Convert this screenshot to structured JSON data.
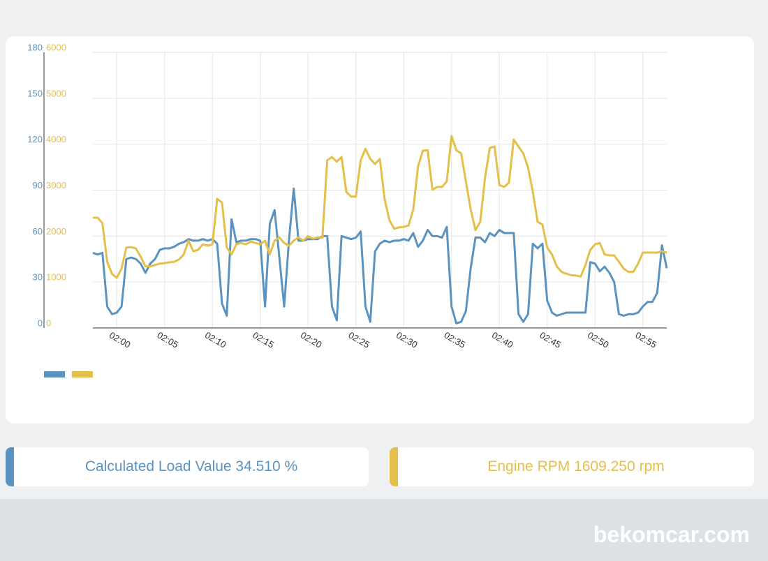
{
  "chart_data": {
    "type": "line",
    "x": [
      -2.5,
      -2,
      -1.5,
      -1,
      -0.5,
      0,
      0.5,
      1,
      1.5,
      2,
      2.5,
      3,
      3.5,
      4,
      4.5,
      5,
      5.5,
      6,
      6.5,
      7,
      7.5,
      8,
      8.5,
      9,
      9.5,
      10,
      10.5,
      11,
      11.5,
      12,
      12.5,
      13,
      13.5,
      14,
      14.5,
      15,
      15.5,
      16,
      16.5,
      17,
      17.5,
      18,
      18.5,
      19,
      19.5,
      20,
      20.5,
      21,
      21.5,
      22,
      22.5,
      23,
      23.5,
      24,
      24.5,
      25,
      25.5,
      26,
      26.5,
      27,
      27.5,
      28,
      28.5,
      29,
      29.5,
      30,
      30.5,
      31,
      31.5,
      32,
      32.5,
      33,
      33.5,
      34,
      34.5,
      35,
      35.5,
      36,
      36.5,
      37,
      37.5,
      38,
      38.5,
      39,
      39.5,
      40,
      40.5,
      41,
      41.5,
      42,
      42.5,
      43,
      43.5,
      44,
      44.5,
      45,
      45.5,
      46,
      46.5,
      47,
      47.5,
      48,
      48.5,
      49,
      49.5,
      50,
      50.5,
      51,
      51.5,
      52,
      52.5,
      53,
      53.5,
      54,
      54.5,
      55,
      55.5,
      56,
      56.5,
      57,
      57.5
    ],
    "xlim": [
      -2.5,
      57.5
    ],
    "xticks": [
      {
        "value": 0,
        "label": "02:00"
      },
      {
        "value": 5,
        "label": "02:05"
      },
      {
        "value": 10,
        "label": "02:10"
      },
      {
        "value": 15,
        "label": "02:15"
      },
      {
        "value": 20,
        "label": "02:20"
      },
      {
        "value": 25,
        "label": "02:25"
      },
      {
        "value": 30,
        "label": "02:30"
      },
      {
        "value": 35,
        "label": "02:35"
      },
      {
        "value": 40,
        "label": "02:40"
      },
      {
        "value": 45,
        "label": "02:45"
      },
      {
        "value": 50,
        "label": "02:50"
      },
      {
        "value": 55,
        "label": "02:55"
      }
    ],
    "ylim": [
      0,
      180
    ],
    "yticks": [
      0,
      30,
      60,
      90,
      120,
      150,
      180
    ],
    "y2lim": [
      0,
      6000
    ],
    "y2ticks": [
      0,
      1000,
      2000,
      3000,
      4000,
      5000,
      6000
    ],
    "grid": true,
    "series": [
      {
        "color": "#5b93c0",
        "values": [
          49,
          48,
          49,
          14,
          9,
          10,
          14,
          45,
          46,
          45,
          42,
          36,
          42,
          45,
          51,
          52,
          52,
          53,
          55,
          56,
          58,
          57,
          57,
          58,
          57,
          58,
          55,
          16,
          8,
          71,
          56,
          57,
          57,
          58,
          58,
          57,
          14,
          68,
          77,
          46,
          14,
          57,
          91,
          57,
          57,
          58,
          58,
          58,
          60,
          60,
          14,
          5,
          60,
          59,
          58,
          59,
          63,
          14,
          4,
          50,
          55,
          57,
          56,
          57,
          57,
          58,
          57,
          62,
          53,
          57,
          64,
          60,
          60,
          59,
          66,
          14,
          3,
          4,
          11,
          39,
          59,
          59,
          56,
          62,
          60,
          64,
          62,
          62,
          62,
          9,
          4,
          9,
          55,
          52,
          55,
          18,
          10,
          8,
          9,
          10,
          10,
          10,
          10,
          10,
          43,
          42,
          37,
          40,
          36,
          30,
          9,
          8,
          9,
          9,
          10,
          14,
          17,
          17,
          23,
          54,
          39
        ]
      },
      {
        "color": "#e4bf4a",
        "axis": "y2",
        "values": [
          2400,
          2400,
          2280,
          1440,
          1180,
          1090,
          1290,
          1750,
          1760,
          1730,
          1550,
          1340,
          1340,
          1370,
          1400,
          1410,
          1430,
          1440,
          1490,
          1600,
          1900,
          1670,
          1700,
          1820,
          1790,
          1820,
          2810,
          2730,
          1750,
          1600,
          1820,
          1850,
          1820,
          1880,
          1850,
          1820,
          1900,
          1600,
          1900,
          1970,
          1850,
          1790,
          1900,
          1970,
          1900,
          2000,
          1940,
          1970,
          1970,
          3650,
          3720,
          3620,
          3720,
          2960,
          2860,
          2860,
          3650,
          3900,
          3680,
          3570,
          3680,
          2810,
          2350,
          2160,
          2190,
          2200,
          2230,
          2580,
          3520,
          3860,
          3870,
          3010,
          3070,
          3070,
          3190,
          4180,
          3870,
          3800,
          3190,
          2580,
          2130,
          2310,
          3270,
          3920,
          3950,
          3110,
          3070,
          3160,
          4100,
          3950,
          3800,
          3490,
          2960,
          2310,
          2250,
          1750,
          1600,
          1340,
          1220,
          1180,
          1150,
          1140,
          1120,
          1370,
          1700,
          1820,
          1850,
          1600,
          1580,
          1580,
          1440,
          1290,
          1220,
          1220,
          1400,
          1640,
          1640,
          1640,
          1640,
          1670,
          1640
        ]
      }
    ]
  },
  "cards": [
    {
      "text": "Calculated Load Value 34.510 %",
      "color": "#5b93c0"
    },
    {
      "text": "Engine RPM 1609.250 rpm",
      "color": "#e4bf4a"
    }
  ],
  "watermark": "bekomcar.com"
}
